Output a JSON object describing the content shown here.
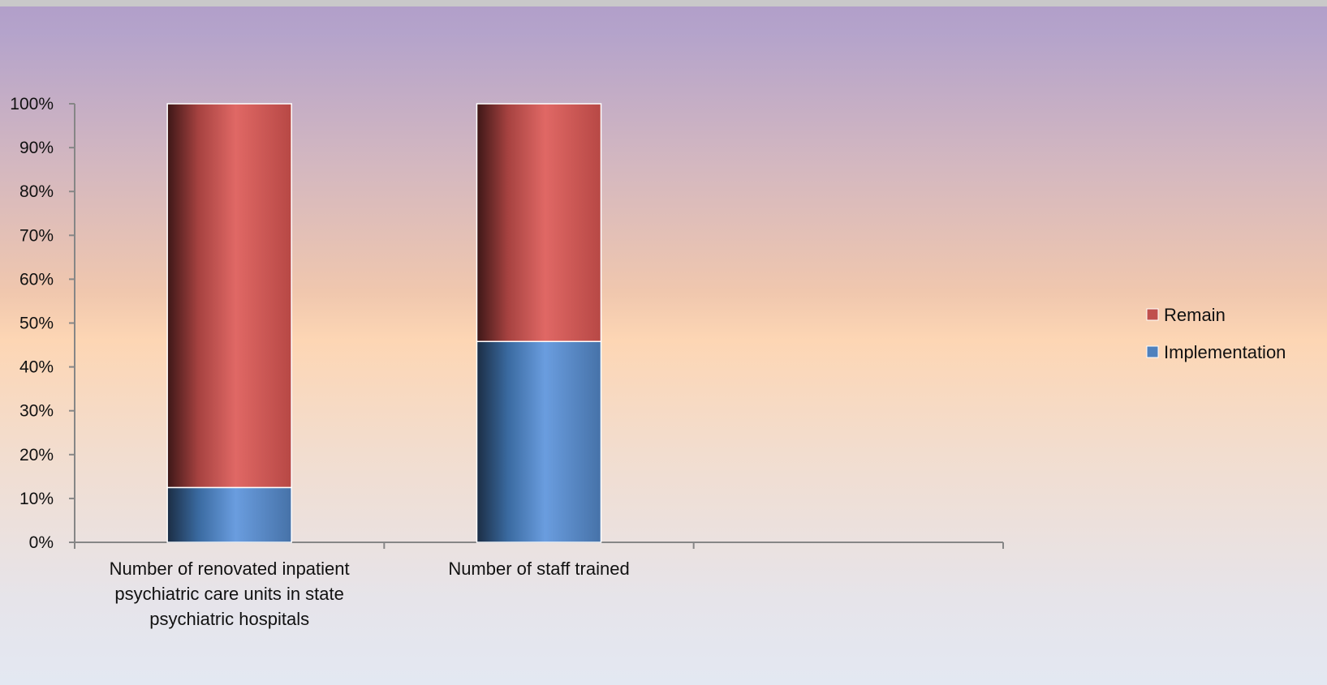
{
  "chart_data": {
    "type": "bar",
    "stacked": true,
    "categories": [
      "Number of renovated inpatient psychiatric care units in state psychiatric hospitals",
      "Number of staff trained",
      ""
    ],
    "category_lines": [
      [
        "Number of renovated inpatient",
        "psychiatric care units in state",
        "psychiatric hospitals"
      ],
      [
        "Number of staff trained"
      ],
      []
    ],
    "series": [
      {
        "name": "Implementation",
        "values": [
          12.5,
          45.8,
          null
        ],
        "color": "#4f81bd"
      },
      {
        "name": "Remain",
        "values": [
          87.5,
          54.2,
          null
        ],
        "color": "#c0504d"
      }
    ],
    "y_ticks": [
      "0%",
      "10%",
      "20%",
      "30%",
      "40%",
      "50%",
      "60%",
      "70%",
      "80%",
      "90%",
      "100%"
    ],
    "ylim": [
      0,
      100
    ],
    "y_unit": "%",
    "legend_position": "right",
    "legend_order": [
      "Remain",
      "Implementation"
    ],
    "grid": false
  }
}
